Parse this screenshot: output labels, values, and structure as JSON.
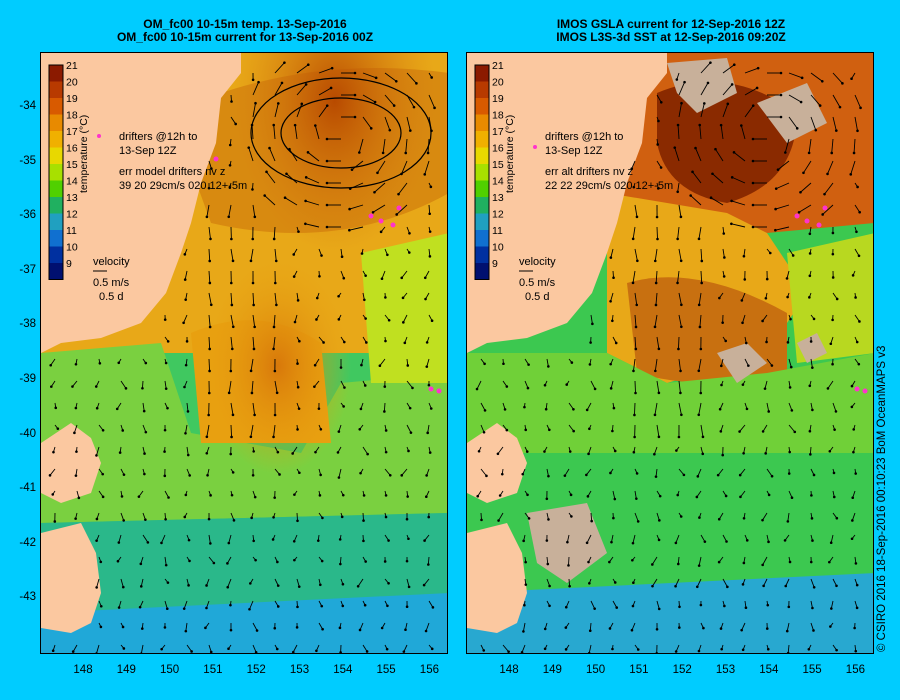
{
  "left_panel": {
    "title_line1": "OM_fc00 10-15m temp. 13-Sep-2016",
    "title_line2": "OM_fc00 10-15m current for 13-Sep-2016 00Z",
    "drifters_label_1": "drifters @12h to",
    "drifters_label_2": "13-Sep 12Z",
    "err_label_1": "err model drifters nv z",
    "err_label_2": "39 20 29cm/s 020 12+-5m",
    "velocity_label": "velocity",
    "velocity_scale_1": "0.5 m/s",
    "velocity_scale_2": "0.5 d"
  },
  "right_panel": {
    "title_line1": "IMOS GSLA current for 12-Sep-2016 12Z",
    "title_line2": "IMOS L3S-3d SST at 12-Sep-2016 09:20Z",
    "drifters_label_1": "drifters @12h to",
    "drifters_label_2": "13-Sep 12Z",
    "err_label_1": "err alt drifters nv z",
    "err_label_2": "22 22 29cm/s 020 12+-5m",
    "velocity_label": "velocity",
    "velocity_scale_1": "0.5 m/s",
    "velocity_scale_2": "0.5 d"
  },
  "colorbar": {
    "label": "temperature (°C)",
    "ticks": [
      "21",
      "20",
      "19",
      "18",
      "17",
      "16",
      "15",
      "14",
      "13",
      "12",
      "11",
      "10",
      "9"
    ],
    "colors": [
      "#8b1a00",
      "#b83a00",
      "#d85a00",
      "#e88a00",
      "#f0b000",
      "#e8d800",
      "#a8e000",
      "#50d000",
      "#20b060",
      "#20a0c0",
      "#1070d0",
      "#0030a0",
      "#001070"
    ]
  },
  "lat_ticks": [
    "-34",
    "-35",
    "-36",
    "-37",
    "-38",
    "-39",
    "-40",
    "-41",
    "-42",
    "-43"
  ],
  "lon_ticks": [
    "148",
    "149",
    "150",
    "151",
    "152",
    "153",
    "154",
    "155",
    "156"
  ],
  "credit": "© CSIRO 2016   18-Sep-2016 00:10:23 BoM OceanMAPS v3",
  "colors": {
    "background": "#00ccff",
    "land": "#fbc8a0",
    "cloud": "#c8b09a",
    "drifter": "#ff33cc"
  }
}
